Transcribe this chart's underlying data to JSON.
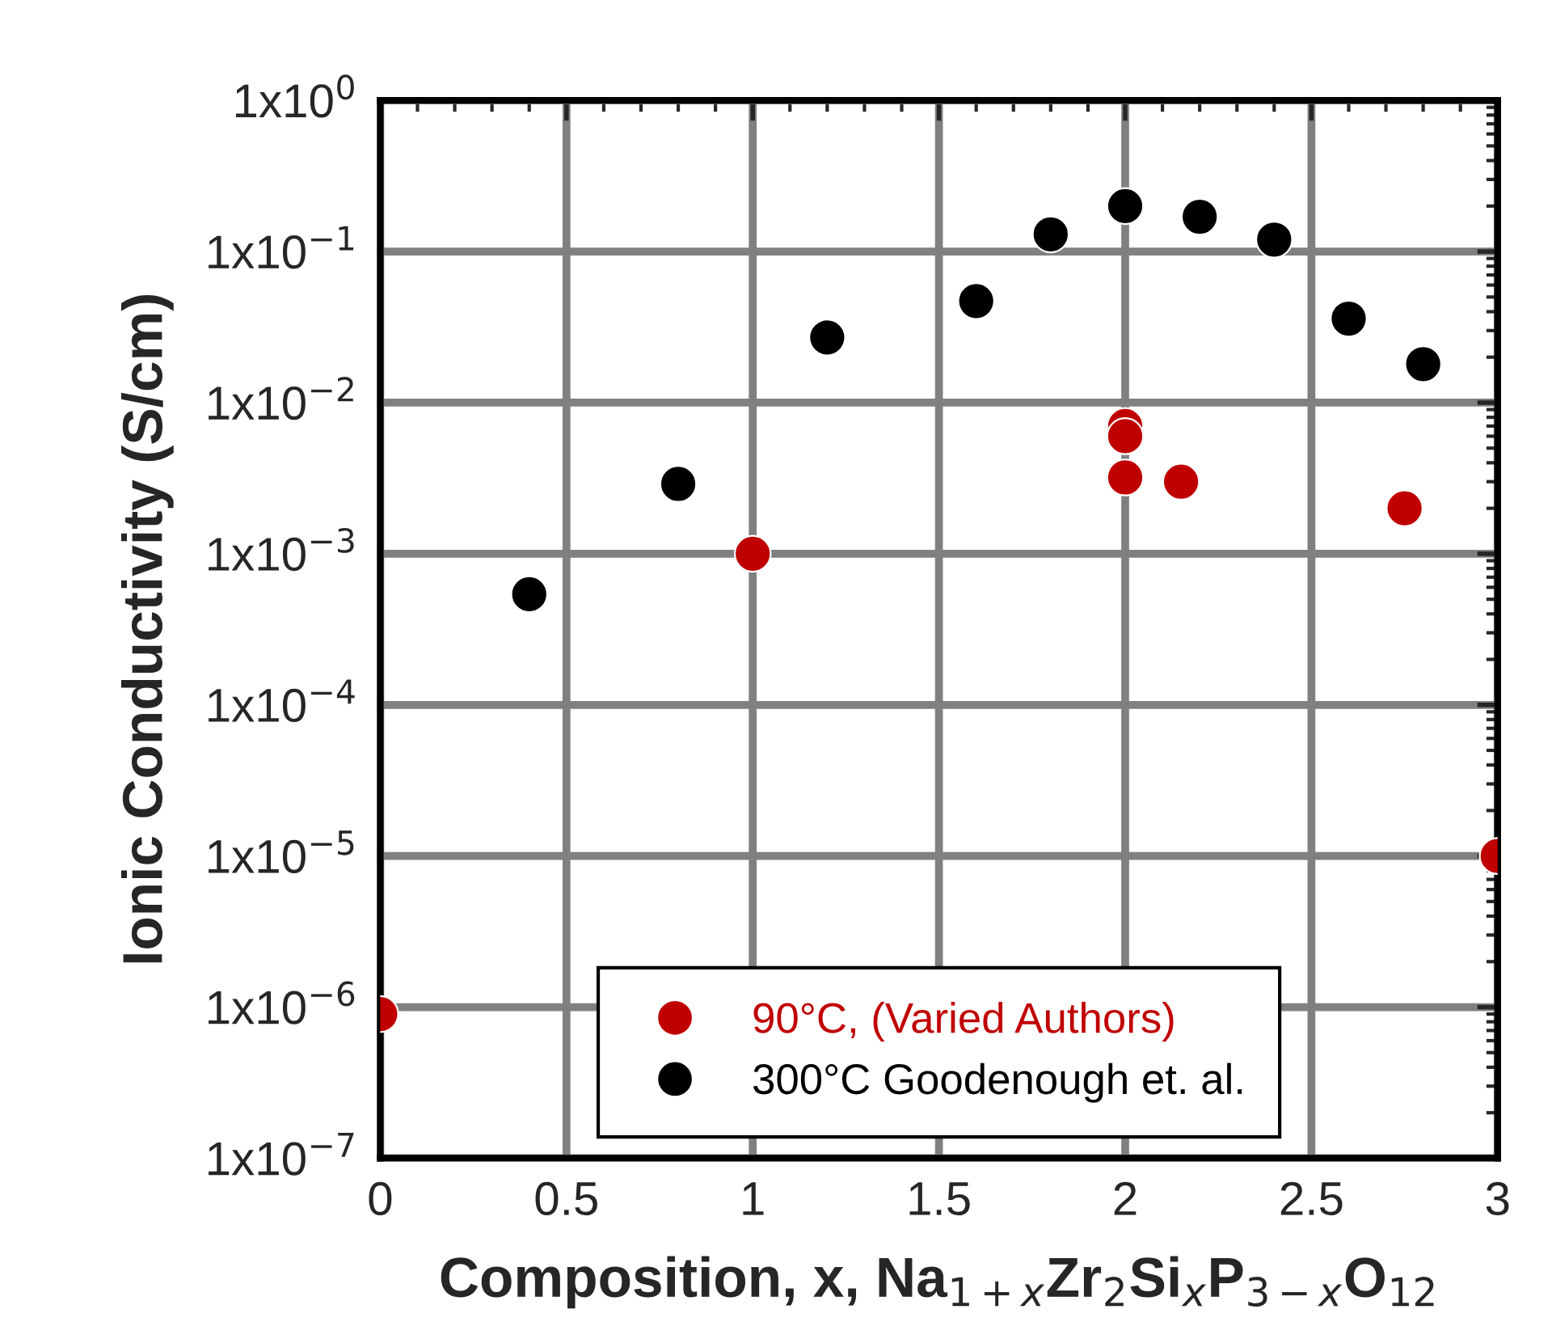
{
  "chart_data": {
    "type": "scatter",
    "xlabel": "Composition, x, Na$_{1+x}$Zr$_{2}$Si$_{x}$P$_{3−x}$O$_{12}$",
    "ylabel": "Ionic Conductivity (S/cm)",
    "series": [
      {
        "name": "90°C, (Varied Authors)",
        "color": "#c00000",
        "x": [
          0,
          1.0,
          2.0,
          2.0,
          2.0,
          2.15,
          2.75,
          3.0
        ],
        "values": [
          9e-07,
          0.001,
          0.007,
          0.006,
          0.0032,
          0.003,
          0.002,
          1e-05
        ]
      },
      {
        "name": "300°C Goodenough et. al.",
        "color": "#000000",
        "x": [
          0.4,
          0.8,
          1.2,
          1.6,
          1.8,
          2.0,
          2.2,
          2.4,
          2.6,
          2.8
        ],
        "values": [
          0.00054,
          0.0029,
          0.027,
          0.047,
          0.13,
          0.2,
          0.17,
          0.12,
          0.036,
          0.018
        ]
      }
    ],
    "log": "y",
    "xlim": [
      0,
      3
    ],
    "xticks": [
      0,
      0.5,
      1,
      1.5,
      2,
      2.5,
      3
    ],
    "ylim": [
      1e-07,
      1
    ],
    "yticks": [
      {
        "value": 1e-07,
        "label": "1x10$^{−7}$"
      },
      {
        "value": 1e-06,
        "label": "1x10$^{−6}$"
      },
      {
        "value": 1e-05,
        "label": "1x10$^{−5}$"
      },
      {
        "value": 0.0001,
        "label": "1x10$^{−4}$"
      },
      {
        "value": 0.001,
        "label": "1x10$^{−3}$"
      },
      {
        "value": 0.01,
        "label": "1x10$^{−2}$"
      },
      {
        "value": 0.1,
        "label": "1x10$^{−1}$"
      },
      {
        "value": 1,
        "label": "1x10$^{0}$"
      }
    ],
    "grid": true,
    "legend": "bottom",
    "marker": "circle"
  }
}
